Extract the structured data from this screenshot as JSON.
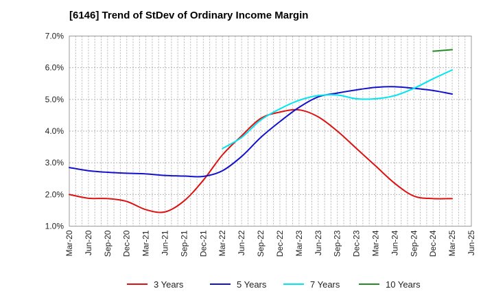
{
  "chart_data": {
    "type": "line",
    "title": "[6146]  Trend of StDev of Ordinary Income Margin",
    "xlabel": "",
    "ylabel": "",
    "x_ticks": [
      "Mar-20",
      "Jun-20",
      "Sep-20",
      "Dec-20",
      "Mar-21",
      "Jun-21",
      "Sep-21",
      "Dec-21",
      "Mar-22",
      "Jun-22",
      "Sep-22",
      "Dec-22",
      "Mar-23",
      "Jun-23",
      "Sep-23",
      "Dec-23",
      "Mar-24",
      "Jun-24",
      "Sep-24",
      "Dec-24",
      "Mar-25",
      "Jun-25"
    ],
    "y_ticks": [
      "1.0%",
      "2.0%",
      "3.0%",
      "4.0%",
      "5.0%",
      "6.0%",
      "7.0%"
    ],
    "ylim": [
      1.0,
      7.0
    ],
    "grid": true,
    "legend_position": "bottom",
    "series": [
      {
        "name": "3 Years",
        "color": "#dd1111",
        "x": [
          "Mar-20",
          "Jun-20",
          "Sep-20",
          "Dec-20",
          "Mar-21",
          "Jun-21",
          "Sep-21",
          "Dec-21",
          "Mar-22",
          "Jun-22",
          "Sep-22",
          "Dec-22",
          "Mar-23",
          "Jun-23",
          "Sep-23",
          "Dec-23",
          "Mar-24",
          "Jun-24",
          "Sep-24",
          "Dec-24",
          "Mar-25"
        ],
        "values": [
          2.0,
          1.88,
          1.87,
          1.78,
          1.52,
          1.45,
          1.8,
          2.45,
          3.25,
          3.85,
          4.4,
          4.6,
          4.67,
          4.45,
          4.0,
          3.45,
          2.9,
          2.35,
          1.95,
          1.87,
          1.87
        ]
      },
      {
        "name": "5 Years",
        "color": "#1111cc",
        "x": [
          "Mar-20",
          "Jun-20",
          "Sep-20",
          "Dec-20",
          "Mar-21",
          "Jun-21",
          "Sep-21",
          "Dec-21",
          "Mar-22",
          "Jun-22",
          "Sep-22",
          "Dec-22",
          "Mar-23",
          "Jun-23",
          "Sep-23",
          "Dec-23",
          "Mar-24",
          "Jun-24",
          "Sep-24",
          "Dec-24",
          "Mar-25"
        ],
        "values": [
          2.85,
          2.75,
          2.7,
          2.67,
          2.65,
          2.6,
          2.58,
          2.57,
          2.75,
          3.2,
          3.8,
          4.3,
          4.75,
          5.08,
          5.2,
          5.3,
          5.38,
          5.4,
          5.35,
          5.28,
          5.17
        ]
      },
      {
        "name": "7 Years",
        "color": "#00e5ee",
        "x": [
          "Mar-22",
          "Jun-22",
          "Sep-22",
          "Dec-22",
          "Mar-23",
          "Jun-23",
          "Sep-23",
          "Dec-23",
          "Mar-24",
          "Jun-24",
          "Sep-24",
          "Dec-24",
          "Mar-25"
        ],
        "values": [
          3.45,
          3.8,
          4.35,
          4.7,
          4.97,
          5.12,
          5.14,
          5.02,
          5.02,
          5.12,
          5.35,
          5.65,
          5.93
        ]
      },
      {
        "name": "10 Years",
        "color": "#228b22",
        "x": [
          "Dec-24",
          "Mar-25"
        ],
        "values": [
          6.52,
          6.57
        ]
      }
    ]
  }
}
